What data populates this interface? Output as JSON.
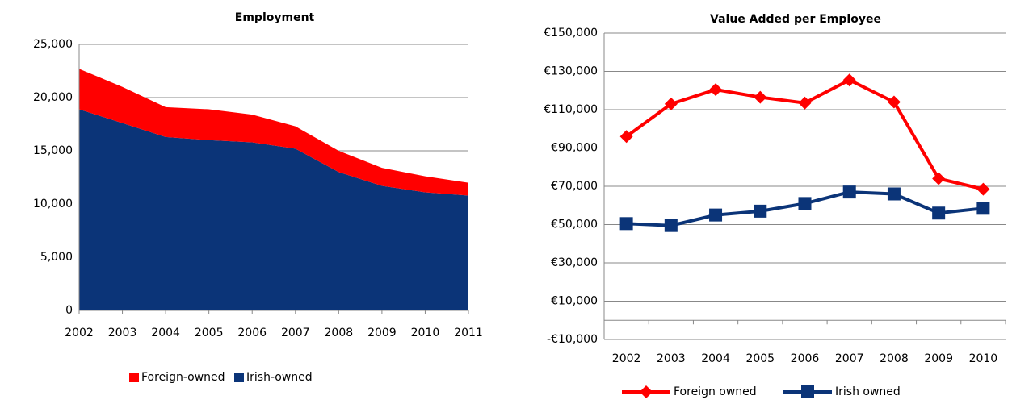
{
  "chart_data": [
    {
      "type": "area",
      "stacked": true,
      "title": "Employment",
      "categories": [
        "2002",
        "2003",
        "2004",
        "2005",
        "2006",
        "2007",
        "2008",
        "2009",
        "2010",
        "2011"
      ],
      "series": [
        {
          "name": "Foreign-owned",
          "color": "#ff0000",
          "values": [
            3800,
            3400,
            2800,
            2900,
            2600,
            2100,
            2000,
            1700,
            1500,
            1200
          ]
        },
        {
          "name": "Irish-owned",
          "color": "#0b3478",
          "values": [
            18900,
            17600,
            16300,
            16000,
            15800,
            15200,
            13000,
            11700,
            11100,
            10800
          ]
        }
      ],
      "ylim": [
        0,
        25000
      ],
      "yticks": [
        0,
        {
          "value": 5000,
          "label": "5,000"
        },
        {
          "value": 10000,
          "label": "10,000"
        },
        {
          "value": 15000,
          "label": "15,000"
        },
        {
          "value": 20000,
          "label": "20,000"
        },
        {
          "value": 25000,
          "label": "25,000"
        }
      ],
      "grid": true,
      "legend": "bottom"
    },
    {
      "type": "line",
      "title": "Value Added per Employee",
      "categories": [
        "2002",
        "2003",
        "2004",
        "2005",
        "2006",
        "2007",
        "2008",
        "2009",
        "2010"
      ],
      "series": [
        {
          "name": "Foreign owned",
          "color": "#ff0000",
          "marker": "diamond",
          "values": [
            96000,
            113000,
            120500,
            116500,
            113500,
            125500,
            114000,
            74000,
            68500
          ]
        },
        {
          "name": "Irish owned",
          "color": "#0b3478",
          "marker": "square",
          "values": [
            50500,
            49500,
            55000,
            57000,
            61000,
            67000,
            66000,
            56000,
            58500
          ]
        }
      ],
      "ylim": [
        -10000,
        150000
      ],
      "yticks": [
        {
          "value": -10000,
          "label": "-€10,000"
        },
        {
          "value": 10000,
          "label": "€10,000"
        },
        {
          "value": 30000,
          "label": "€30,000"
        },
        {
          "value": 50000,
          "label": "€50,000"
        },
        {
          "value": 70000,
          "label": "€70,000"
        },
        {
          "value": 90000,
          "label": "€90,000"
        },
        {
          "value": 110000,
          "label": "€110,000"
        },
        {
          "value": 130000,
          "label": "€130,000"
        },
        {
          "value": 150000,
          "label": "€150,000"
        }
      ],
      "grid": true,
      "legend": "bottom"
    }
  ]
}
